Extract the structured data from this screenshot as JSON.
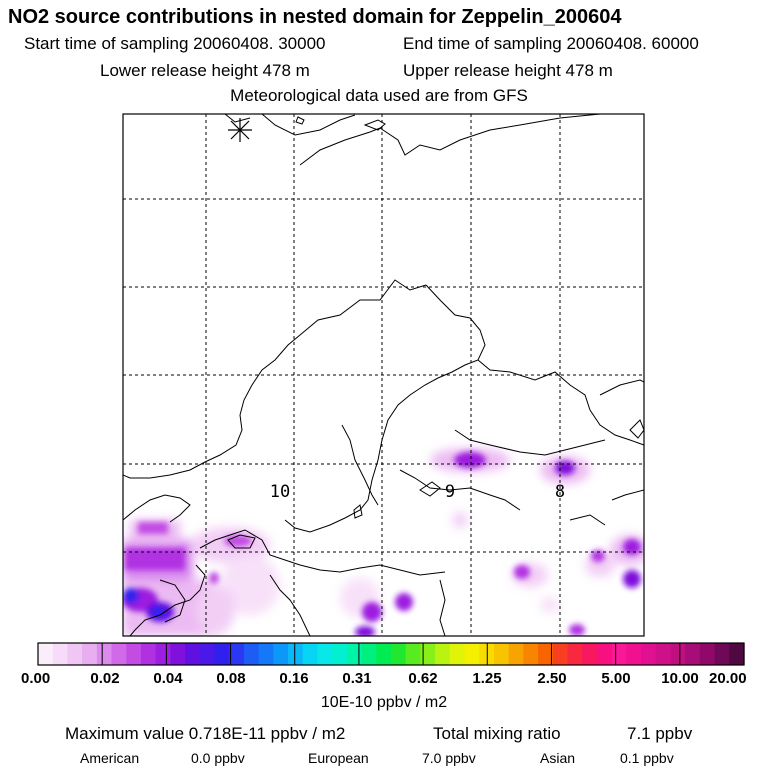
{
  "header": {
    "title": "NO2 source contributions in nested domain for Zeppelin_200604",
    "start_time": "Start time of sampling 20060408. 30000",
    "end_time": "End time of sampling 20060408. 60000",
    "lower_height": "Lower release height  478 m",
    "upper_height": "Upper release height  478 m",
    "met_source": "Meteorological data used are from GFS"
  },
  "map": {
    "grid_labels": [
      "10",
      "9",
      "8"
    ],
    "station_marker": "asterisk-marker",
    "coastline_color": "#000000",
    "grid_line_style": "dashed"
  },
  "colorbar": {
    "tick_labels": [
      "0.00",
      "0.02",
      "0.04",
      "0.08",
      "0.16",
      "0.31",
      "0.62",
      "1.25",
      "2.50",
      "5.00",
      "10.00",
      "20.00"
    ],
    "colors": [
      "#fbeefb",
      "#f6dcf8",
      "#f0c6f4",
      "#e8aef0",
      "#dc8bec",
      "#d06ae8",
      "#c24ce4",
      "#b030e2",
      "#9c1ee0",
      "#8010dc",
      "#6010e0",
      "#4a18e8",
      "#3020ee",
      "#2a38f4",
      "#1e5cf6",
      "#1478f8",
      "#0c98f8",
      "#0ab8f8",
      "#08d4f4",
      "#08e8e8",
      "#00f0d0",
      "#00f4a8",
      "#00f080",
      "#00ec50",
      "#20e830",
      "#58ec20",
      "#88f018",
      "#b8f410",
      "#e0f408",
      "#f4f000",
      "#f8dc00",
      "#f8c400",
      "#f8a400",
      "#f88400",
      "#f86400",
      "#f84020",
      "#f82840",
      "#f81860",
      "#f81080",
      "#f81898",
      "#f01090",
      "#e01090",
      "#d01088",
      "#c01080",
      "#a80c78",
      "#900868",
      "#700858",
      "#500840"
    ],
    "units": "10E-10 ppbv / m2"
  },
  "summary": {
    "max_value": "Maximum value  0.718E-11 ppbv / m2",
    "total_label": "Total mixing ratio",
    "total_value": "7.1 ppbv",
    "american_label": "American",
    "american_value": "0.0 ppbv",
    "european_label": "European",
    "european_value": "7.0 ppbv",
    "asian_label": "Asian",
    "asian_value": "0.1 ppbv"
  }
}
